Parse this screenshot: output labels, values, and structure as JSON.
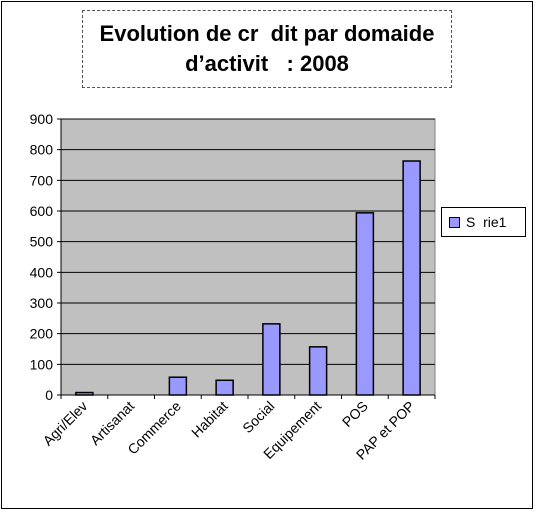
{
  "chart_data": {
    "type": "bar",
    "title_line1": "Evolution de cr  dit par domaide",
    "title_line2": "d’activit   : 2008",
    "categories": [
      "Agri/Elev",
      "Artisanat",
      "Commerce",
      "Habitat",
      "Social",
      "Equipement",
      "POS",
      "PAP et POP"
    ],
    "series": [
      {
        "name": "S  rie1",
        "values": [
          8,
          0,
          58,
          48,
          232,
          157,
          594,
          763
        ]
      }
    ],
    "ylim": [
      0,
      900
    ],
    "yticks": [
      0,
      100,
      200,
      300,
      400,
      500,
      600,
      700,
      800,
      900
    ],
    "grid": true,
    "legend": "right",
    "colors": {
      "bar": "#9999ff",
      "plot_bg": "#c0c0c0",
      "grid": "#000000"
    }
  }
}
